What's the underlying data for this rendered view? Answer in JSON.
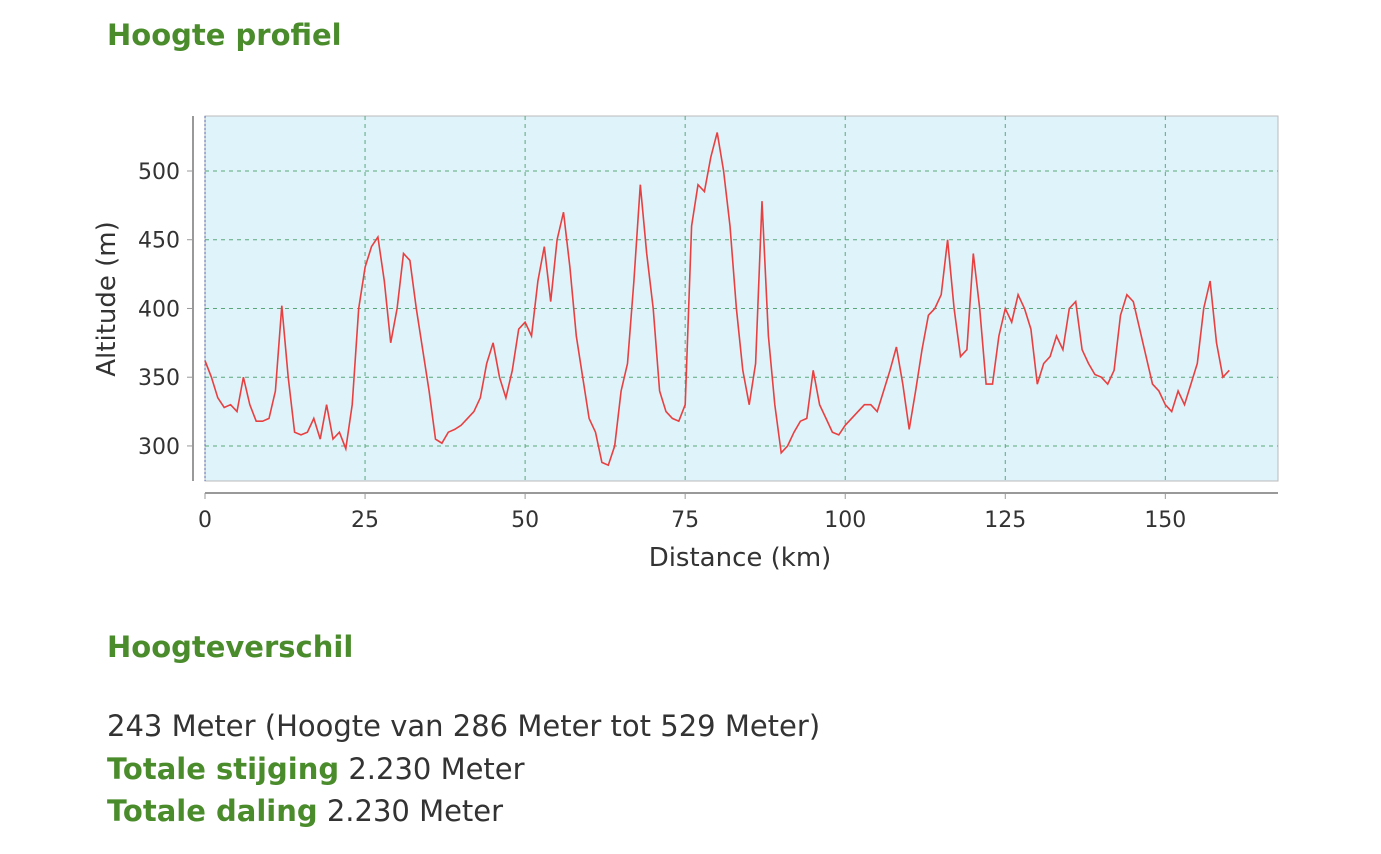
{
  "heading_profile": "Hoogte profiel",
  "heading_diff": "Hoogteverschil",
  "summary": "243 Meter (Hoogte van 286 Meter tot 529 Meter)",
  "ascent_label": "Totale stijging",
  "ascent_value": "2.230 Meter",
  "descent_label": "Totale daling",
  "descent_value": "2.230 Meter",
  "colors": {
    "line": "#e84040",
    "plot_bg": "#dff3fb",
    "grid": "#5aa87a",
    "heading": "#4a8b2c"
  },
  "chart_data": {
    "type": "line",
    "title": "",
    "xlabel": "Distance (km)",
    "ylabel": "Altitude (m)",
    "xlim": [
      0,
      167.6
    ],
    "ylim": [
      274.5,
      540
    ],
    "xticks": [
      0,
      25,
      50,
      75,
      100,
      125,
      150
    ],
    "yticks": [
      300,
      350,
      400,
      450,
      500
    ],
    "grid": true,
    "series": [
      {
        "name": "Altitude",
        "x": [
          0,
          1,
          2,
          3,
          4,
          5,
          6,
          7,
          8,
          9,
          10,
          11,
          12,
          13,
          14,
          15,
          16,
          17,
          18,
          19,
          20,
          21,
          22,
          23,
          24,
          25,
          26,
          27,
          28,
          29,
          30,
          31,
          32,
          33,
          34,
          35,
          36,
          37,
          38,
          39,
          40,
          41,
          42,
          43,
          44,
          45,
          46,
          47,
          48,
          49,
          50,
          51,
          52,
          53,
          54,
          55,
          56,
          57,
          58,
          59,
          60,
          61,
          62,
          63,
          64,
          65,
          66,
          67,
          68,
          69,
          70,
          71,
          72,
          73,
          74,
          75,
          76,
          77,
          78,
          79,
          80,
          81,
          82,
          83,
          84,
          85,
          86,
          87,
          88,
          89,
          90,
          91,
          92,
          93,
          94,
          95,
          96,
          97,
          98,
          99,
          100,
          101,
          102,
          103,
          104,
          105,
          106,
          107,
          108,
          109,
          110,
          111,
          112,
          113,
          114,
          115,
          116,
          117,
          118,
          119,
          120,
          121,
          122,
          123,
          124,
          125,
          126,
          127,
          128,
          129,
          130,
          131,
          132,
          133,
          134,
          135,
          136,
          137,
          138,
          139,
          140,
          141,
          142,
          143,
          144,
          145,
          146,
          147,
          148,
          149,
          150,
          151,
          152,
          153,
          154,
          155,
          156,
          157,
          158,
          159,
          160
        ],
        "y": [
          362,
          350,
          335,
          328,
          330,
          325,
          350,
          330,
          318,
          318,
          320,
          340,
          402,
          350,
          310,
          308,
          310,
          320,
          305,
          330,
          305,
          310,
          298,
          330,
          400,
          430,
          445,
          452,
          420,
          375,
          400,
          440,
          435,
          400,
          370,
          340,
          305,
          302,
          310,
          312,
          315,
          320,
          325,
          335,
          360,
          375,
          350,
          335,
          355,
          385,
          390,
          380,
          420,
          445,
          405,
          450,
          470,
          430,
          380,
          350,
          320,
          310,
          288,
          286,
          300,
          340,
          360,
          420,
          490,
          440,
          400,
          340,
          325,
          320,
          318,
          330,
          460,
          490,
          485,
          510,
          528,
          500,
          460,
          400,
          355,
          330,
          360,
          478,
          380,
          330,
          295,
          300,
          310,
          318,
          320,
          355,
          330,
          320,
          310,
          308,
          315,
          320,
          325,
          330,
          330,
          325,
          340,
          355,
          372,
          345,
          312,
          340,
          370,
          395,
          400,
          410,
          450,
          400,
          365,
          370,
          440,
          400,
          345,
          345,
          380,
          400,
          390,
          410,
          400,
          385,
          345,
          360,
          365,
          380,
          370,
          400,
          405,
          370,
          360,
          352,
          350,
          345,
          355,
          395,
          410,
          405,
          385,
          365,
          345,
          340,
          330,
          325,
          340,
          330,
          345,
          360,
          400,
          420,
          375,
          350,
          355
        ]
      }
    ]
  }
}
